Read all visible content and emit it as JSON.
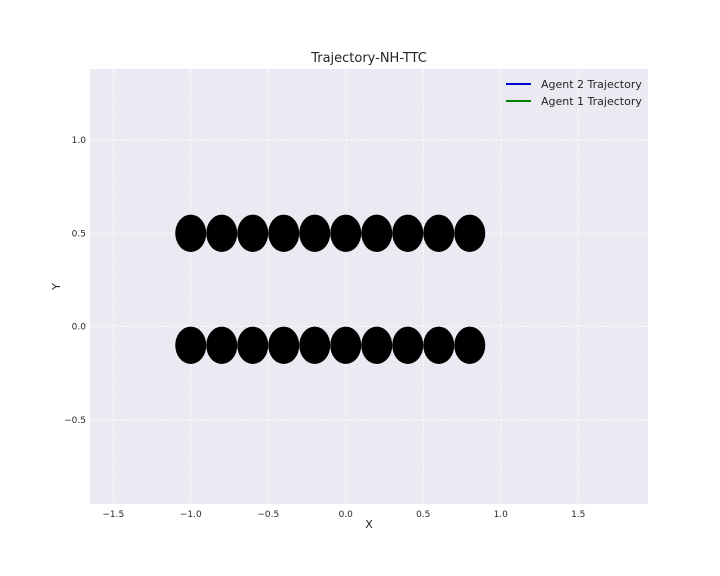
{
  "chart_data": {
    "type": "scatter",
    "title": "Trajectory-NH-TTC",
    "xlabel": "X",
    "ylabel": "Y",
    "xlim": [
      -1.65,
      1.95
    ],
    "ylim": [
      -0.95,
      1.38
    ],
    "xticks": [
      -1.5,
      -1.0,
      -0.5,
      0.0,
      0.5,
      1.0,
      1.5
    ],
    "xtick_labels": [
      "−1.5",
      "−1.0",
      "−0.5",
      "0.0",
      "0.5",
      "1.0",
      "1.5"
    ],
    "yticks": [
      -0.5,
      0.0,
      0.5,
      1.0
    ],
    "ytick_labels": [
      "−0.5",
      "0.0",
      "0.5",
      "1.0"
    ],
    "grid": true,
    "legend_position": "top-right",
    "marker_radius": 0.1,
    "marker_color": "#000000",
    "series": [
      {
        "name": "Agent 2 Trajectory",
        "color": "#0000cc",
        "x": [
          -1.0,
          -0.8,
          -0.6,
          -0.4,
          -0.2,
          0.0,
          0.2,
          0.4,
          0.6,
          0.8
        ],
        "y": [
          0.5,
          0.5,
          0.5,
          0.5,
          0.5,
          0.5,
          0.5,
          0.5,
          0.5,
          0.5
        ]
      },
      {
        "name": "Agent 1 Trajectory",
        "color": "#008000",
        "x": [
          -1.0,
          -0.8,
          -0.6,
          -0.4,
          -0.2,
          0.0,
          0.2,
          0.4,
          0.6,
          0.8
        ],
        "y": [
          -0.1,
          -0.1,
          -0.1,
          -0.1,
          -0.1,
          -0.1,
          -0.1,
          -0.1,
          -0.1,
          -0.1
        ]
      }
    ]
  }
}
